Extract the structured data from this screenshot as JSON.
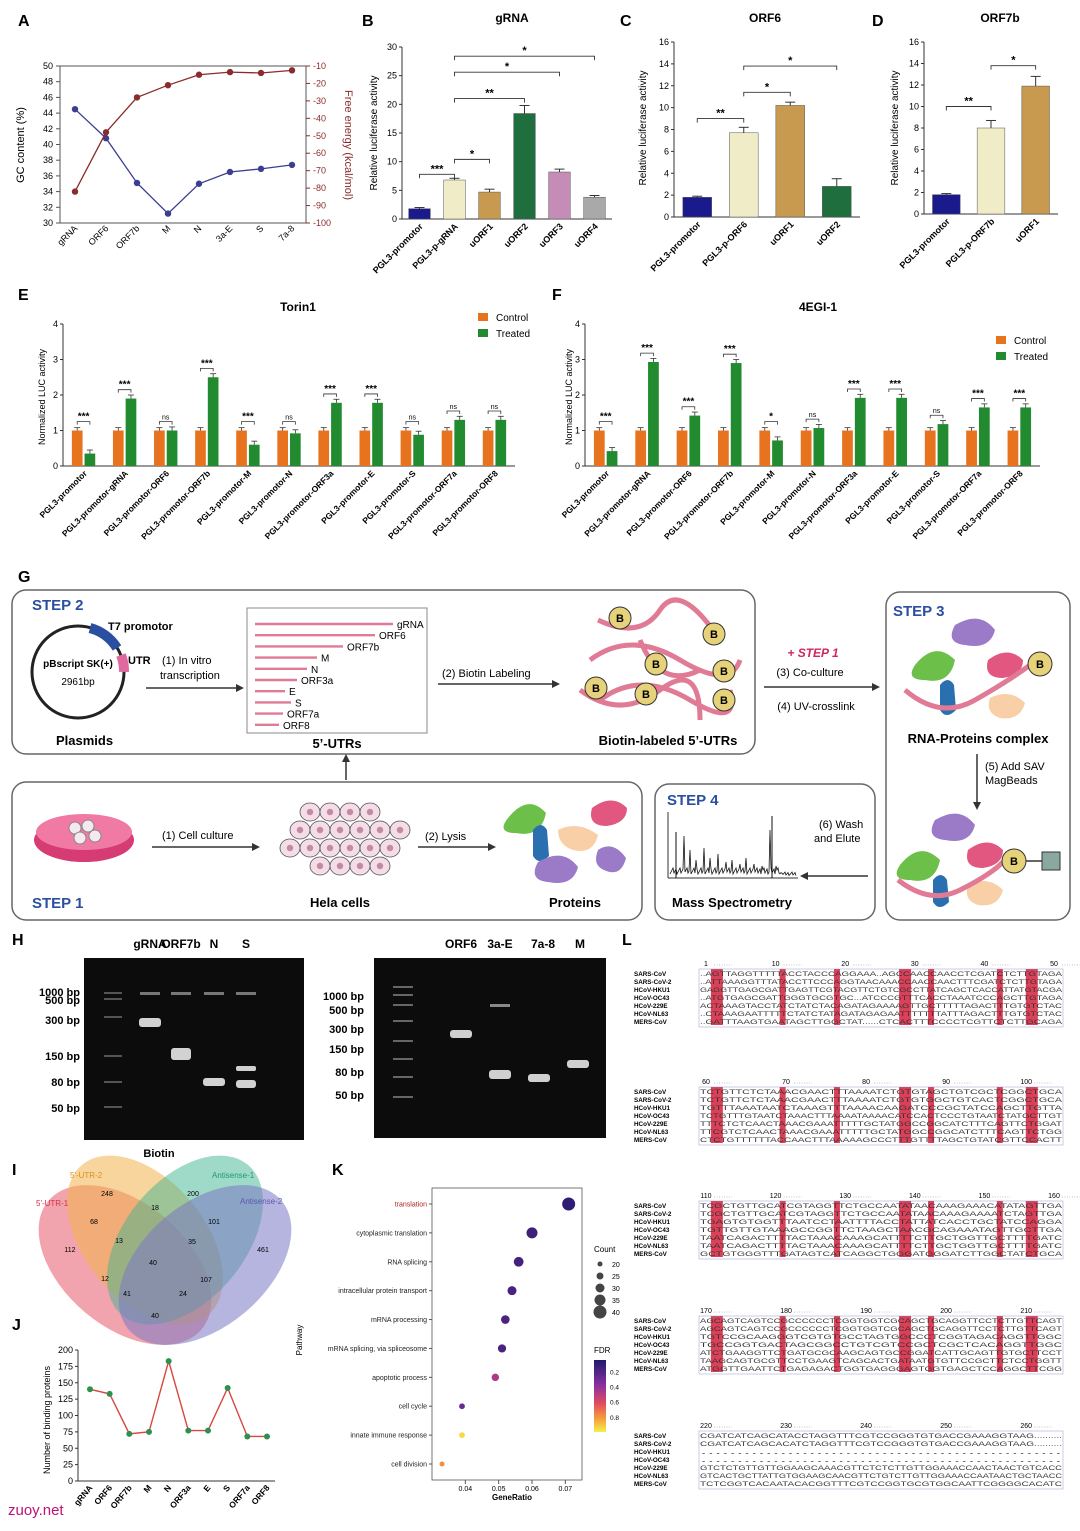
{
  "panels": {
    "A": {
      "label": "A",
      "ylabel_left": "GC content (%)",
      "ylabel_right": "Free energy (kcal/mol)",
      "categories": [
        "gRNA",
        "ORF6",
        "ORF7b",
        "M",
        "N",
        "3a-E",
        "S",
        "7a-8"
      ],
      "left_ticks": [
        "50",
        "48",
        "46",
        "44",
        "42",
        "40",
        "38",
        "36",
        "34",
        "32",
        "30"
      ],
      "right_ticks": [
        "-10",
        "-20",
        "-30",
        "-40",
        "-50",
        "-60",
        "-70",
        "-80",
        "-90",
        "-100"
      ],
      "colors": {
        "gc": "#3b3f8f",
        "energy": "#8b2b2b"
      }
    },
    "B": {
      "label": "B",
      "title": "gRNA",
      "ylabel": "Relative luciferase activity",
      "categories": [
        "PGL3-promotor",
        "PGL3-p-gRNA",
        "uORF1",
        "uORF2",
        "uORF3",
        "uORF4"
      ],
      "sig": [
        "***",
        "*",
        "**",
        "*",
        "*"
      ]
    },
    "C": {
      "label": "C",
      "title": "ORF6",
      "ylabel": "Relative luciferase activity",
      "categories": [
        "PGL3-promotor",
        "PGL3-p-ORF6",
        "uORF1",
        "uORF2"
      ],
      "sig": [
        "**",
        "*",
        "*"
      ]
    },
    "D": {
      "label": "D",
      "title": "ORF7b",
      "ylabel": "Relative luciferase activity",
      "categories": [
        "PGL3-promotor",
        "PGL3-p-ORF7b",
        "uORF1"
      ],
      "sig": [
        "**",
        "*"
      ]
    },
    "E": {
      "label": "E",
      "title": "Torin1",
      "ylabel": "Normalized LUC activity",
      "legend": [
        "Control",
        "Treated"
      ],
      "categories": [
        "PGL3-promotor",
        "PGL3-promotor-gRNA",
        "PGL3-promotor-ORF6",
        "PGL3-promotor-ORF7b",
        "PGL3-promotor-M",
        "PGL3-promotor-N",
        "PGL3-promotor-ORF3a",
        "PGL3-promotor-E",
        "PGL3-promotor-S",
        "PGL3-promotor-ORF7a",
        "PGL3-promotor-ORF8"
      ],
      "sig": [
        "***",
        "***",
        "ns",
        "***",
        "***",
        "ns",
        "***",
        "***",
        "ns",
        "ns",
        "ns"
      ]
    },
    "F": {
      "label": "F",
      "title": "4EGI-1",
      "ylabel": "Normalized LUC activity",
      "legend": [
        "Control",
        "Treated"
      ],
      "categories": [
        "PGL3-promotor",
        "PGL3-promotor-gRNA",
        "PGL3-promotor-ORF6",
        "PGL3-promotor-ORF7b",
        "PGL3-promotor-M",
        "PGL3-promotor-N",
        "PGL3-promotor-ORF3a",
        "PGL3-promotor-E",
        "PGL3-promotor-S",
        "PGL3-promotor-ORF7a",
        "PGL3-promotor-ORF8"
      ],
      "sig": [
        "***",
        "***",
        "***",
        "***",
        "*",
        "ns",
        "***",
        "***",
        "ns",
        "***",
        "***"
      ]
    },
    "G": {
      "label": "G",
      "step1": "STEP 1",
      "step2": "STEP 2",
      "step3": "STEP 3",
      "step4": "STEP 4",
      "t7": "T7 promotor",
      "utr": "UTR",
      "plasmid_name": "pBscript SK(+)",
      "plasmid_size": "2961bp",
      "plasmids": "Plasmids",
      "arrow1": "(1) In vitro transcription",
      "utr_list": [
        "gRNA",
        "ORF6",
        "ORF7b",
        "M",
        "N",
        "ORF3a",
        "E",
        "S",
        "ORF7a",
        "ORF8"
      ],
      "utrs_label": "5’-UTRs",
      "arrow2": "(2) Biotin Labeling",
      "bead": "B",
      "biotin_label": "Biotin-labeled 5’-UTRs",
      "plus_step1": "+ STEP 1",
      "coculture": "(3) Co-culture",
      "crosslink": "(4) UV-crosslink",
      "rna_complex": "RNA-Proteins complex",
      "add_sav": "(5) Add SAV MagBeads",
      "cell_culture": "(1) Cell culture",
      "hela": "Hela cells",
      "lysis": "(2) Lysis",
      "proteins": "Proteins",
      "wash": "(6) Wash and Elute",
      "mass": "Mass Spectrometry"
    },
    "H": {
      "label": "H",
      "lanes_left": [
        "gRNA",
        "ORF7b",
        "N",
        "S"
      ],
      "lanes_right": [
        "ORF6",
        "3a-E",
        "7a-8",
        "M"
      ],
      "ladder_left": [
        "1000 bp",
        "500 bp",
        "300 bp",
        "150 bp",
        "80 bp",
        "50 bp"
      ],
      "ladder_right": [
        "1000 bp",
        "500 bp",
        "300 bp",
        "150 bp",
        "80 bp",
        "50 bp"
      ],
      "caption": "Biotin"
    },
    "I": {
      "label": "I",
      "sets": [
        "5'-UTR-1",
        "5'-UTR-2",
        "Antisense-1",
        "Antisense-2"
      ],
      "counts": [
        "248",
        "200",
        "112",
        "461",
        "68",
        "18",
        "101",
        "13",
        "35",
        "40",
        "12",
        "107",
        "41",
        "24",
        "40"
      ]
    },
    "J": {
      "label": "J",
      "ylabel": "Number of binding proteins",
      "categories": [
        "gRNA",
        "ORF6",
        "ORF7b",
        "M",
        "N",
        "ORF3a",
        "E",
        "S",
        "ORF7a",
        "ORF8"
      ],
      "ticks": [
        "200",
        "175",
        "150",
        "125",
        "100",
        "75",
        "50",
        "25",
        "0"
      ]
    },
    "K": {
      "label": "K",
      "ylabel": "Pathway",
      "xlabel": "GeneRatio",
      "pathways": [
        "translation",
        "cytoplasmic translation",
        "RNA splicing",
        "intracellular protein transport",
        "mRNA processing",
        "mRNA splicing, via spliceosome",
        "apoptotic process",
        "cell cycle",
        "innate immune response",
        "cell division"
      ],
      "xticks": [
        "0.04",
        "0.05",
        "0.06",
        "0.07"
      ],
      "count_title": "Count",
      "count_values": [
        "20",
        "25",
        "30",
        "35",
        "40"
      ],
      "fdr_title": "FDR",
      "fdr_values": [
        "0.2",
        "0.4",
        "0.6",
        "0.8"
      ]
    },
    "L": {
      "label": "L",
      "species": [
        "SARS-CoV",
        "SARS-CoV-2",
        "HCoV-HKU1",
        "HCoV-OC43",
        "HCoV-229E",
        "HCoV-NL63",
        "MERS-CoV"
      ],
      "blocks": [
        {
          "ruler": [
            "1",
            "10",
            "20",
            "30",
            "40",
            "50"
          ],
          "rows": [
            "..AGTTAGGTTTTTACCTACCCAGGAAA..AGCCAACCAACCTCGATCTCTTGTAGA",
            "..ATTAAAGGTTTATACCTTCCCAGGTAACAAACCAACCAACTTTCGATCTCTTGTAGA",
            "GAGGTTGAGCGATTGAGTTCGTACGTTCTGTCGCCTTATCAGCTCACCATTATGTACGA",
            "..ATGTGAGCGATTGGGTGCGTGC...ATCCCGTTTCACCTAAATCCCAGCTTGTAGA",
            "ACTAAAGTACCTATCTATCTACAGATAGAAAAGTTGCTTTTTAGACTTTGTGTCTAC",
            "..CTAAAGAATTTTTCTATCTATAGATAGAGAATTTTTTTATTTAGACTTTGTGTCTAC",
            "..GATTTAAGTGAATAGCTTGGCTAT......CTCACTTTCCCCTCGTTCTCTTGCAGA"
          ]
        },
        {
          "ruler": [
            "60",
            "70",
            "80",
            "90",
            "100"
          ],
          "rows": [
            "TCTGTTCTCTAAACGAACTTTAAAATCTGTGTAGCTGTCGCTCGGCTGCA",
            "TCTGTTCTCTAAACGAACTTTAAAATCTGTGTGGCTGTCACTCGGCTGCA",
            "TGTTTAAATAATCTAAAGTTTAAAACAAGATCCCGCTATCCAGCTTGTTA",
            "TCTGTTTGTAATCTAAACTTTAAAATAAAACATCCACTCCCTGTAATCTATGCTTGT",
            "TTTCTCTCAACTAAACGAAATTTTTGCTATGGCCGGCATCTTTCAGTTCTGGAT",
            "TTCGTCTCAACTAAACGAAATTTTTGCTATGGCCGGCATCTTTCAGTTCTGG",
            "CTCTGTTTTTTACCAACTTTAAAAAGCCCTTTGTTTTAGCTGTATCGTTCCACTT"
          ]
        },
        {
          "ruler": [
            "110",
            "120",
            "130",
            "140",
            "150",
            "160"
          ],
          "rows": [
            "TCGCTGTTGCATCGTAGGTTCTGCCAATATAACAAAGAAACATATAGTTGA",
            "TCGCTGTTGCATCGTAGGTTCTGCCAATATAACAAAGAAAATCTAGTTGA",
            "TGAGTGTGGTTTAATCCTAATTTTACCTATTATCACCTGCTATCCAGGA",
            "TGTTGTTGTAAAGCCGGTTCTAAGCTAACGCAGAAATAGTTGCTTGA",
            "TAATCAGACTTTTACTAAACAAAGCATTTTCTTGCTGGTTGCTTTTGATC",
            "TAATCAGACTTTTACTAAACAAAGCATTTTCTTGCTGGTTGCTTTTGATC",
            "GCTGTGGGTTTGATAGTCATCAGGCTGGGATGGGATCTTGGCTATCTGCA"
          ]
        },
        {
          "ruler": [
            "170",
            "180",
            "190",
            "200",
            "210"
          ],
          "rows": [
            "AGCAGTCAGTCCGCCCCCCTCGGTGGTCGCAGCTGCAGGTTCCTCTTGTTCAGT",
            "AGCAGTCAGTCCGCCCCCCTCGGTGGTCGCAGCTGCAGGTTCCTCTTGTTCAGT",
            "TGTCCGCAAGGGTCGTGTGCCTAGTGGCCCTCGGTAGACAGGTTGGC",
            "TGCCGGTGACTAGCGGCCTGTCGTCCGCTCGCTCACAGGTTGGC",
            "ATCTGAAGGTTCTGATGCGCAAGCAGTGCCGGATCATTGCAGTTGTGCTTCCT",
            "TAAGCAGTGCGTTCCTGAAGTCAGCACTGATAATGTGTTCCGCTTCTCCTGGTT",
            "ATGGTTGAATTCTGAGAGACTGGTGAGGGAGTGGTGAGCTCCAGGCTTCGG"
          ]
        },
        {
          "ruler": [
            "220",
            "230",
            "240",
            "250",
            "260"
          ],
          "rows": [
            "CGATCATCAGCATACCTAGGTTTCGTCCGGGTGTGACCGAAAGGTAAG..........",
            "CGATCATCAGCACATCTAGGTTTCGTCCGGGTGTGACCGAAAGGTAAG..........",
            "..................................................",
            "..................................................",
            "GTCTCTGTTGTTGGAAGCAAACGTTCTCTCTTGTTGGAAACCAACTAACTGTCACC",
            "GTCACTGCTTATTGTGGAAGCAACGTTCTGTCTTGTTGGAAACCAATAACTGCTAACC",
            "TCTCGGTCACAATACACGGTTTCGTCCGGTGCGTGGCAATTCGGGGCACATC"
          ]
        }
      ]
    }
  },
  "watermark": "zuoy.net",
  "chart_data": [
    {
      "type": "line",
      "panel": "A",
      "x": [
        "gRNA",
        "ORF6",
        "ORF7b",
        "M",
        "N",
        "3a-E",
        "S",
        "7a-8"
      ],
      "series": [
        {
          "name": "GC content (%)",
          "values": [
            44.5,
            40.8,
            35.1,
            31.2,
            35.0,
            36.5,
            36.9,
            37.4
          ]
        },
        {
          "name": "Free energy (kcal/mol)",
          "values": [
            -82,
            -48,
            -28,
            -21,
            -15,
            -13.5,
            -14,
            -12.5
          ]
        }
      ],
      "ylim": [
        30,
        50
      ],
      "ylim_right": [
        -100,
        -10
      ]
    },
    {
      "type": "bar",
      "panel": "B",
      "categories": [
        "PGL3-promotor",
        "PGL3-p-gRNA",
        "uORF1",
        "uORF2",
        "uORF3",
        "uORF4"
      ],
      "values": [
        1.8,
        6.8,
        4.7,
        18.4,
        8.2,
        3.8
      ],
      "errors": [
        0.2,
        0.3,
        0.5,
        1.4,
        0.5,
        0.3
      ],
      "ylim": [
        0,
        30
      ],
      "colors": [
        "#1a1a8c",
        "#f1ecc8",
        "#c89a50",
        "#1e6e3e",
        "#c58cb8",
        "#a9a9a9"
      ]
    },
    {
      "type": "bar",
      "panel": "C",
      "categories": [
        "PGL3-promotor",
        "PGL3-p-ORF6",
        "uORF1",
        "uORF2"
      ],
      "values": [
        1.8,
        7.7,
        10.2,
        2.8
      ],
      "errors": [
        0.1,
        0.5,
        0.3,
        0.7
      ],
      "ylim": [
        0,
        16
      ],
      "colors": [
        "#1a1a8c",
        "#f1ecc8",
        "#c89a50",
        "#1e6e3e"
      ]
    },
    {
      "type": "bar",
      "panel": "D",
      "categories": [
        "PGL3-promotor",
        "PGL3-p-ORF7b",
        "uORF1"
      ],
      "values": [
        1.8,
        8.0,
        11.9
      ],
      "errors": [
        0.1,
        0.7,
        0.9
      ],
      "ylim": [
        0,
        16
      ],
      "colors": [
        "#1a1a8c",
        "#f1ecc8",
        "#c89a50"
      ]
    },
    {
      "type": "bar",
      "panel": "E",
      "categories": [
        "PGL3-promotor",
        "PGL3-promotor-gRNA",
        "PGL3-promotor-ORF6",
        "PGL3-promotor-ORF7b",
        "PGL3-promotor-M",
        "PGL3-promotor-N",
        "PGL3-promotor-ORF3a",
        "PGL3-promotor-E",
        "PGL3-promotor-S",
        "PGL3-promotor-ORF7a",
        "PGL3-promotor-ORF8"
      ],
      "series": [
        {
          "name": "Control",
          "values": [
            1,
            1,
            1,
            1,
            1,
            1,
            1,
            1,
            1,
            1,
            1
          ]
        },
        {
          "name": "Treated",
          "values": [
            0.35,
            1.9,
            1.0,
            2.5,
            0.6,
            0.92,
            1.78,
            1.78,
            0.88,
            1.3,
            1.3
          ]
        }
      ],
      "ylim": [
        0,
        4
      ],
      "colors": [
        "#e8731f",
        "#238b2f"
      ]
    },
    {
      "type": "bar",
      "panel": "F",
      "categories": [
        "PGL3-promotor",
        "PGL3-promotor-gRNA",
        "PGL3-promotor-ORF6",
        "PGL3-promotor-ORF7b",
        "PGL3-promotor-M",
        "PGL3-promotor-N",
        "PGL3-promotor-ORF3a",
        "PGL3-promotor-E",
        "PGL3-promotor-S",
        "PGL3-promotor-ORF7a",
        "PGL3-promotor-ORF8"
      ],
      "series": [
        {
          "name": "Control",
          "values": [
            1,
            1,
            1,
            1,
            1,
            1,
            1,
            1,
            1,
            1,
            1
          ]
        },
        {
          "name": "Treated",
          "values": [
            0.42,
            2.93,
            1.42,
            2.9,
            0.72,
            1.07,
            1.92,
            1.92,
            1.18,
            1.65,
            1.65
          ]
        }
      ],
      "ylim": [
        0,
        4
      ],
      "colors": [
        "#e8731f",
        "#238b2f"
      ]
    },
    {
      "type": "line",
      "panel": "J",
      "categories": [
        "gRNA",
        "ORF6",
        "ORF7b",
        "M",
        "N",
        "ORF3a",
        "E",
        "S",
        "ORF7a",
        "ORF8"
      ],
      "values": [
        140,
        133,
        72,
        75,
        183,
        77,
        77,
        142,
        68,
        68
      ],
      "ylim": [
        0,
        200
      ]
    },
    {
      "type": "scatter",
      "panel": "K",
      "categories": [
        "translation",
        "cytoplasmic translation",
        "RNA splicing",
        "intracellular protein transport",
        "mRNA processing",
        "mRNA splicing, via spliceosome",
        "apoptotic process",
        "cell cycle",
        "innate immune response",
        "cell division"
      ],
      "x": [
        0.071,
        0.06,
        0.056,
        0.054,
        0.052,
        0.051,
        0.049,
        0.039,
        0.039,
        0.033
      ],
      "count": [
        40,
        35,
        32,
        30,
        29,
        28,
        26,
        22,
        22,
        20
      ],
      "fdr": [
        0.05,
        0.1,
        0.12,
        0.13,
        0.14,
        0.14,
        0.45,
        0.25,
        0.95,
        0.78
      ],
      "xlim": [
        0.03,
        0.075
      ]
    }
  ]
}
